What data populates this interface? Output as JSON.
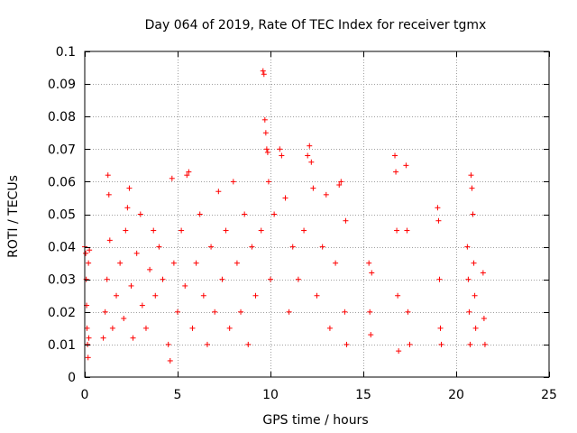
{
  "chart_data": {
    "type": "scatter",
    "title": "Day 064 of 2019, Rate Of TEC Index for receiver tgmx",
    "xlabel": "GPS time / hours",
    "ylabel": "ROTI / TECUs",
    "xlim": [
      0,
      25
    ],
    "ylim": [
      0,
      0.1
    ],
    "xticks": [
      0,
      5,
      10,
      15,
      20,
      25
    ],
    "xtick_labels": [
      "0",
      "5",
      "10",
      "15",
      "20",
      "25"
    ],
    "yticks": [
      0,
      0.01,
      0.02,
      0.03,
      0.04,
      0.05,
      0.06,
      0.07,
      0.08,
      0.09,
      0.1
    ],
    "ytick_labels": [
      "0",
      "0.01",
      "0.02",
      "0.03",
      "0.04",
      "0.05",
      "0.06",
      "0.07",
      "0.08",
      "0.09",
      "0.1"
    ],
    "grid": true,
    "marker": "+",
    "color": "#ff0000",
    "series": [
      {
        "name": "ROTI",
        "points": [
          [
            0.0,
            0.04
          ],
          [
            0.05,
            0.038
          ],
          [
            0.08,
            0.03
          ],
          [
            0.1,
            0.022
          ],
          [
            0.12,
            0.015
          ],
          [
            0.15,
            0.01
          ],
          [
            0.18,
            0.006
          ],
          [
            0.2,
            0.035
          ],
          [
            0.22,
            0.012
          ],
          [
            0.25,
            0.039
          ],
          [
            1.0,
            0.012
          ],
          [
            1.1,
            0.02
          ],
          [
            1.2,
            0.03
          ],
          [
            1.25,
            0.062
          ],
          [
            1.3,
            0.056
          ],
          [
            1.35,
            0.042
          ],
          [
            1.5,
            0.015
          ],
          [
            1.7,
            0.025
          ],
          [
            1.9,
            0.035
          ],
          [
            2.1,
            0.018
          ],
          [
            2.2,
            0.045
          ],
          [
            2.3,
            0.052
          ],
          [
            2.4,
            0.058
          ],
          [
            2.5,
            0.028
          ],
          [
            2.6,
            0.012
          ],
          [
            2.8,
            0.038
          ],
          [
            3.0,
            0.05
          ],
          [
            3.1,
            0.022
          ],
          [
            3.3,
            0.015
          ],
          [
            3.5,
            0.033
          ],
          [
            3.7,
            0.045
          ],
          [
            3.8,
            0.025
          ],
          [
            4.0,
            0.04
          ],
          [
            4.2,
            0.03
          ],
          [
            4.5,
            0.01
          ],
          [
            4.6,
            0.005
          ],
          [
            4.7,
            0.061
          ],
          [
            4.8,
            0.035
          ],
          [
            5.0,
            0.02
          ],
          [
            5.2,
            0.045
          ],
          [
            5.4,
            0.028
          ],
          [
            5.5,
            0.062
          ],
          [
            5.6,
            0.063
          ],
          [
            5.8,
            0.015
          ],
          [
            6.0,
            0.035
          ],
          [
            6.2,
            0.05
          ],
          [
            6.4,
            0.025
          ],
          [
            6.6,
            0.01
          ],
          [
            6.8,
            0.04
          ],
          [
            7.0,
            0.02
          ],
          [
            7.2,
            0.057
          ],
          [
            7.4,
            0.03
          ],
          [
            7.6,
            0.045
          ],
          [
            7.8,
            0.015
          ],
          [
            8.0,
            0.06
          ],
          [
            8.2,
            0.035
          ],
          [
            8.4,
            0.02
          ],
          [
            8.6,
            0.05
          ],
          [
            8.8,
            0.01
          ],
          [
            9.0,
            0.04
          ],
          [
            9.2,
            0.025
          ],
          [
            9.5,
            0.045
          ],
          [
            9.6,
            0.094
          ],
          [
            9.65,
            0.093
          ],
          [
            9.7,
            0.079
          ],
          [
            9.75,
            0.075
          ],
          [
            9.8,
            0.07
          ],
          [
            9.85,
            0.069
          ],
          [
            9.9,
            0.06
          ],
          [
            10.0,
            0.03
          ],
          [
            10.2,
            0.05
          ],
          [
            10.5,
            0.07
          ],
          [
            10.6,
            0.068
          ],
          [
            10.8,
            0.055
          ],
          [
            11.0,
            0.02
          ],
          [
            11.2,
            0.04
          ],
          [
            11.5,
            0.03
          ],
          [
            11.8,
            0.045
          ],
          [
            12.0,
            0.068
          ],
          [
            12.1,
            0.071
          ],
          [
            12.2,
            0.066
          ],
          [
            12.3,
            0.058
          ],
          [
            12.5,
            0.025
          ],
          [
            12.8,
            0.04
          ],
          [
            13.0,
            0.056
          ],
          [
            13.2,
            0.015
          ],
          [
            13.5,
            0.035
          ],
          [
            13.7,
            0.059
          ],
          [
            13.8,
            0.06
          ],
          [
            14.0,
            0.02
          ],
          [
            14.05,
            0.048
          ],
          [
            14.1,
            0.01
          ],
          [
            15.3,
            0.035
          ],
          [
            15.35,
            0.02
          ],
          [
            15.4,
            0.013
          ],
          [
            15.45,
            0.032
          ],
          [
            16.7,
            0.068
          ],
          [
            16.75,
            0.063
          ],
          [
            16.8,
            0.045
          ],
          [
            16.85,
            0.025
          ],
          [
            16.9,
            0.008
          ],
          [
            17.3,
            0.065
          ],
          [
            17.35,
            0.045
          ],
          [
            17.4,
            0.02
          ],
          [
            17.5,
            0.01
          ],
          [
            19.0,
            0.052
          ],
          [
            19.05,
            0.048
          ],
          [
            19.1,
            0.03
          ],
          [
            19.15,
            0.015
          ],
          [
            19.2,
            0.01
          ],
          [
            20.6,
            0.04
          ],
          [
            20.65,
            0.03
          ],
          [
            20.7,
            0.02
          ],
          [
            20.75,
            0.01
          ],
          [
            20.8,
            0.062
          ],
          [
            20.85,
            0.058
          ],
          [
            20.9,
            0.05
          ],
          [
            20.95,
            0.035
          ],
          [
            21.0,
            0.025
          ],
          [
            21.05,
            0.015
          ],
          [
            21.45,
            0.032
          ],
          [
            21.5,
            0.018
          ],
          [
            21.55,
            0.01
          ]
        ]
      }
    ]
  }
}
